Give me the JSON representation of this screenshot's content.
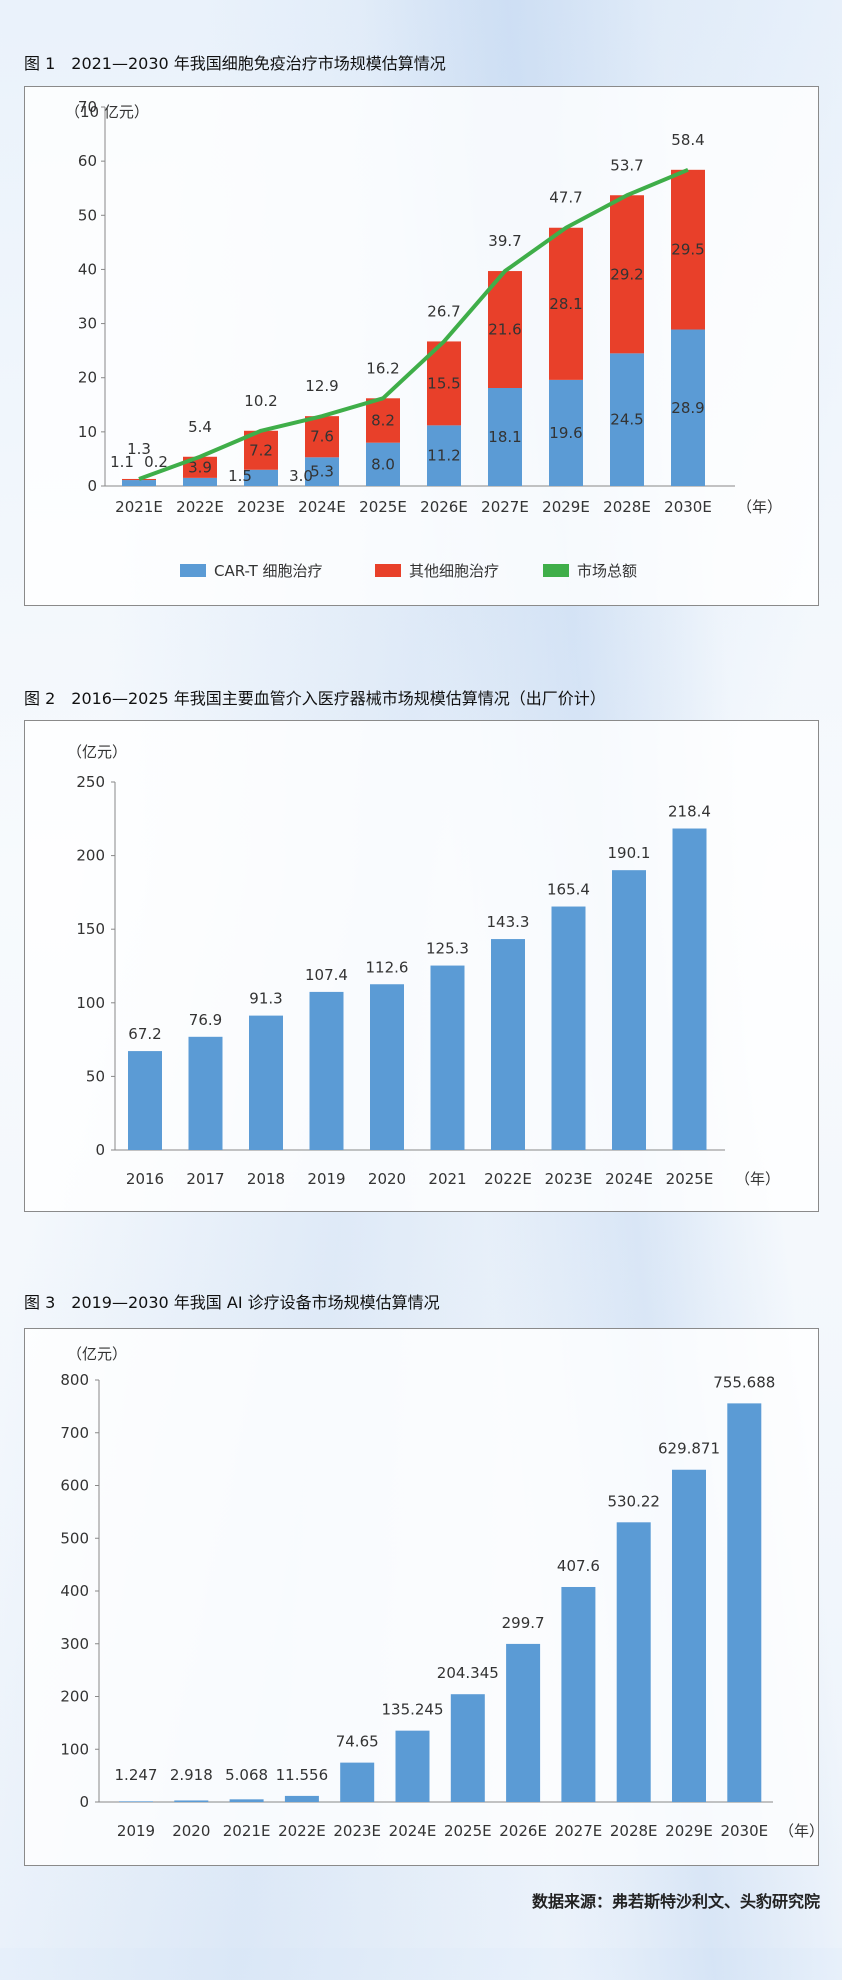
{
  "colors": {
    "blue": "#5b9bd5",
    "red": "#e8402a",
    "green": "#3fae49",
    "axis": "#888888"
  },
  "figure1": {
    "title": "图 1　2021—2030 年我国细胞免疫治疗市场规模估算情况",
    "unit": "（10 亿元）",
    "year_suffix": "（年）",
    "legend": [
      "CAR-T 细胞治疗",
      "其他细胞治疗",
      "市场总额"
    ]
  },
  "figure2": {
    "title": "图 2　2016—2025 年我国主要血管介入医疗器械市场规模估算情况（出厂价计）",
    "unit": "（亿元）",
    "year_suffix": "（年）"
  },
  "figure3": {
    "title": "图 3　2019—2030 年我国 AI 诊疗设备市场规模估算情况",
    "unit": "（亿元）",
    "year_suffix": "（年）"
  },
  "source": "数据来源：弗若斯特沙利文、头豹研究院",
  "chart_data": [
    {
      "type": "bar",
      "stacked": true,
      "categories": [
        "2021E",
        "2022E",
        "2023E",
        "2024E",
        "2025E",
        "2026E",
        "2027E",
        "2029E",
        "2028E",
        "2030E"
      ],
      "series": [
        {
          "name": "CAR-T 细胞治疗",
          "values": [
            1.1,
            1.5,
            3.0,
            5.3,
            8.0,
            11.2,
            18.1,
            19.6,
            24.5,
            28.9
          ],
          "labels": [
            "1.1",
            "1.5",
            "3.0",
            "5.3",
            "8.0",
            "11.2",
            "18.1",
            "19.6",
            "24.5",
            "28.9"
          ]
        },
        {
          "name": "其他细胞治疗",
          "values": [
            0.2,
            3.9,
            7.2,
            7.6,
            8.2,
            15.5,
            21.6,
            28.1,
            29.2,
            29.5
          ],
          "labels": [
            "0.2",
            "3.9",
            "7.2",
            "7.6",
            "8.2",
            "15.5",
            "21.6",
            "28.1",
            "29.2",
            "29.5"
          ]
        }
      ],
      "line": {
        "name": "市场总额",
        "values": [
          1.3,
          5.4,
          10.2,
          12.9,
          16.2,
          26.7,
          39.7,
          47.7,
          53.7,
          58.4
        ],
        "labels": [
          "1.3",
          "5.4",
          "10.2",
          "12.9",
          "16.2",
          "26.7",
          "39.7",
          "47.7",
          "53.7",
          "58.4"
        ]
      },
      "ylim": [
        0,
        70
      ],
      "yticks": [
        "0",
        "10",
        "20",
        "30",
        "40",
        "50",
        "60",
        "70"
      ],
      "legend_position": "bottom"
    },
    {
      "type": "bar",
      "categories": [
        "2016",
        "2017",
        "2018",
        "2019",
        "2020",
        "2021",
        "2022E",
        "2023E",
        "2024E",
        "2025E"
      ],
      "values": [
        67.2,
        76.9,
        91.3,
        107.4,
        112.6,
        125.3,
        143.3,
        165.4,
        190.1,
        218.4
      ],
      "labels": [
        "67.2",
        "76.9",
        "91.3",
        "107.4",
        "112.6",
        "125.3",
        "143.3",
        "165.4",
        "190.1",
        "218.4"
      ],
      "ylim": [
        0,
        250
      ],
      "yticks": [
        "0",
        "50",
        "100",
        "150",
        "200",
        "250"
      ]
    },
    {
      "type": "bar",
      "categories": [
        "2019",
        "2020",
        "2021E",
        "2022E",
        "2023E",
        "2024E",
        "2025E",
        "2026E",
        "2027E",
        "2028E",
        "2029E",
        "2030E"
      ],
      "values": [
        1.247,
        2.918,
        5.068,
        11.556,
        74.65,
        135.245,
        204.345,
        299.7,
        407.6,
        530.22,
        629.871,
        755.688
      ],
      "labels": [
        "1.247",
        "2.918",
        "5.068",
        "11.556",
        "74.65",
        "135.245",
        "204.345",
        "299.7",
        "407.6",
        "530.22",
        "629.871",
        "755.688"
      ],
      "ylim": [
        0,
        800
      ],
      "yticks": [
        "0",
        "100",
        "200",
        "300",
        "400",
        "500",
        "600",
        "700",
        "800"
      ]
    }
  ]
}
